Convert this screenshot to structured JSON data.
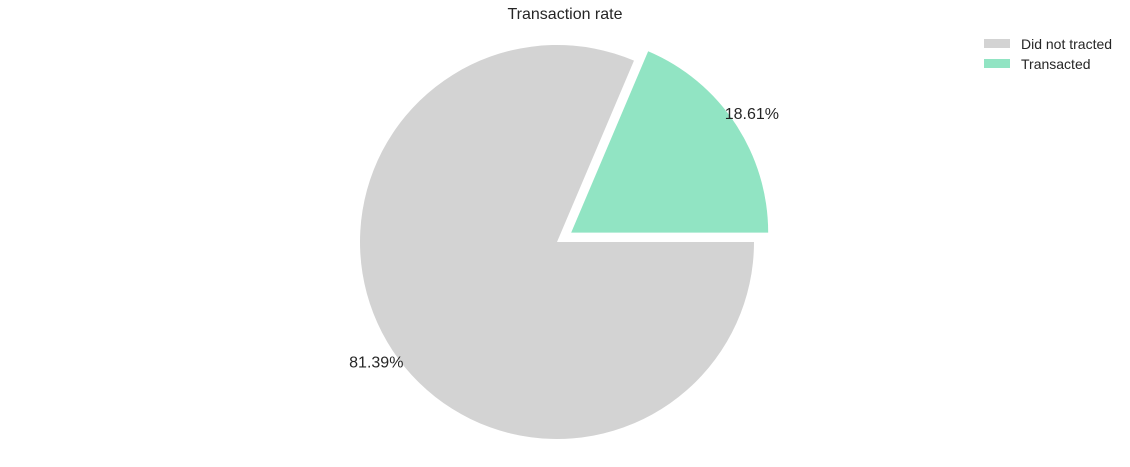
{
  "chart_data": {
    "type": "pie",
    "title": "Transaction rate",
    "labels": [
      "Did not tracted",
      "Transacted"
    ],
    "values": [
      81.39,
      18.61
    ],
    "value_labels": [
      "81.39%",
      "18.61%"
    ],
    "colors": [
      "#d3d3d3",
      "#91e4c3"
    ],
    "exploded": [
      false,
      true
    ],
    "start_angle_deg": 0,
    "direction": "clockwise",
    "legend_position": "top-right"
  }
}
